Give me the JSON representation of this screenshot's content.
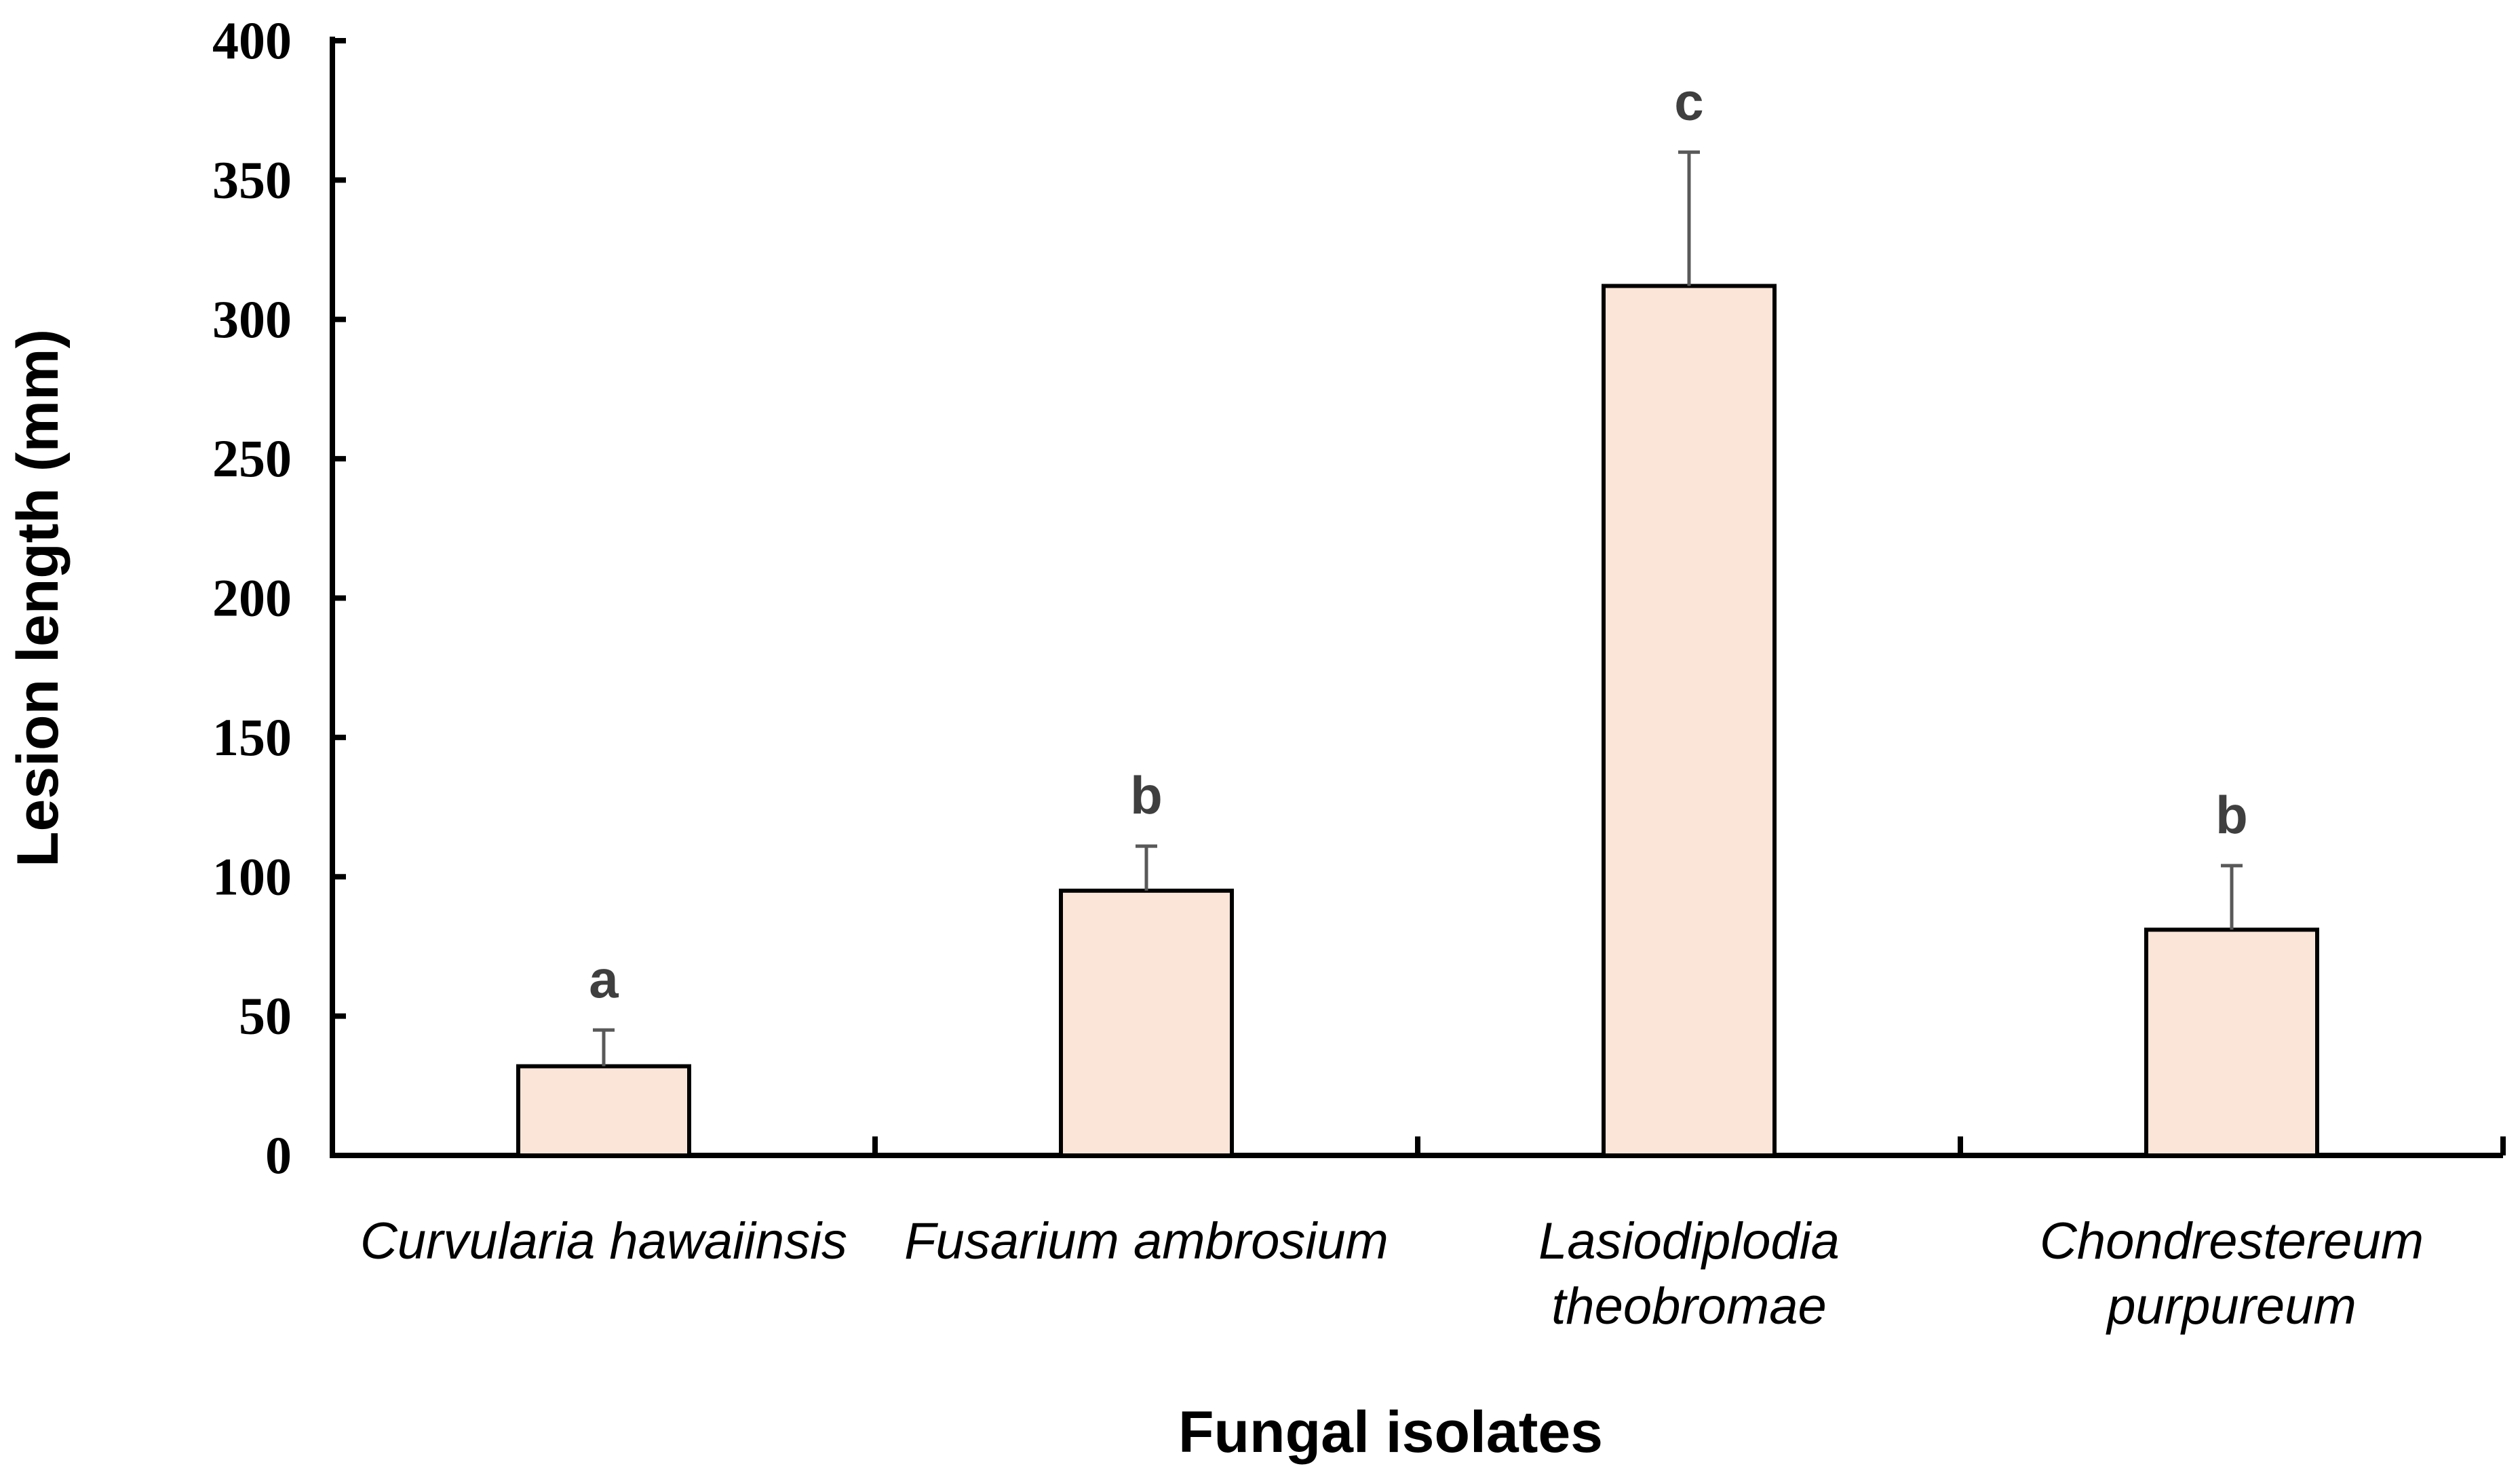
{
  "chart_data": {
    "type": "bar",
    "title": "",
    "xlabel": "Fungal isolates",
    "ylabel": "Lesion length (mm)",
    "ylim": [
      0,
      400
    ],
    "yticks": [
      0,
      50,
      100,
      150,
      200,
      250,
      300,
      350,
      400
    ],
    "grid": false,
    "categories": [
      [
        "Curvularia hawaiinsis"
      ],
      [
        "Fusarium ambrosium"
      ],
      [
        "Lasiodiplodia",
        "theobromae"
      ],
      [
        "Chondrestereum",
        "purpureum"
      ]
    ],
    "values": [
      32,
      95,
      312,
      81
    ],
    "error_upper": [
      13,
      16,
      48,
      23
    ],
    "significance_letters": [
      "a",
      "b",
      "c",
      "b"
    ],
    "colors": {
      "bar_fill": "#fae5d8",
      "bar_edge": "#000000",
      "error_bar": "#595959"
    }
  }
}
